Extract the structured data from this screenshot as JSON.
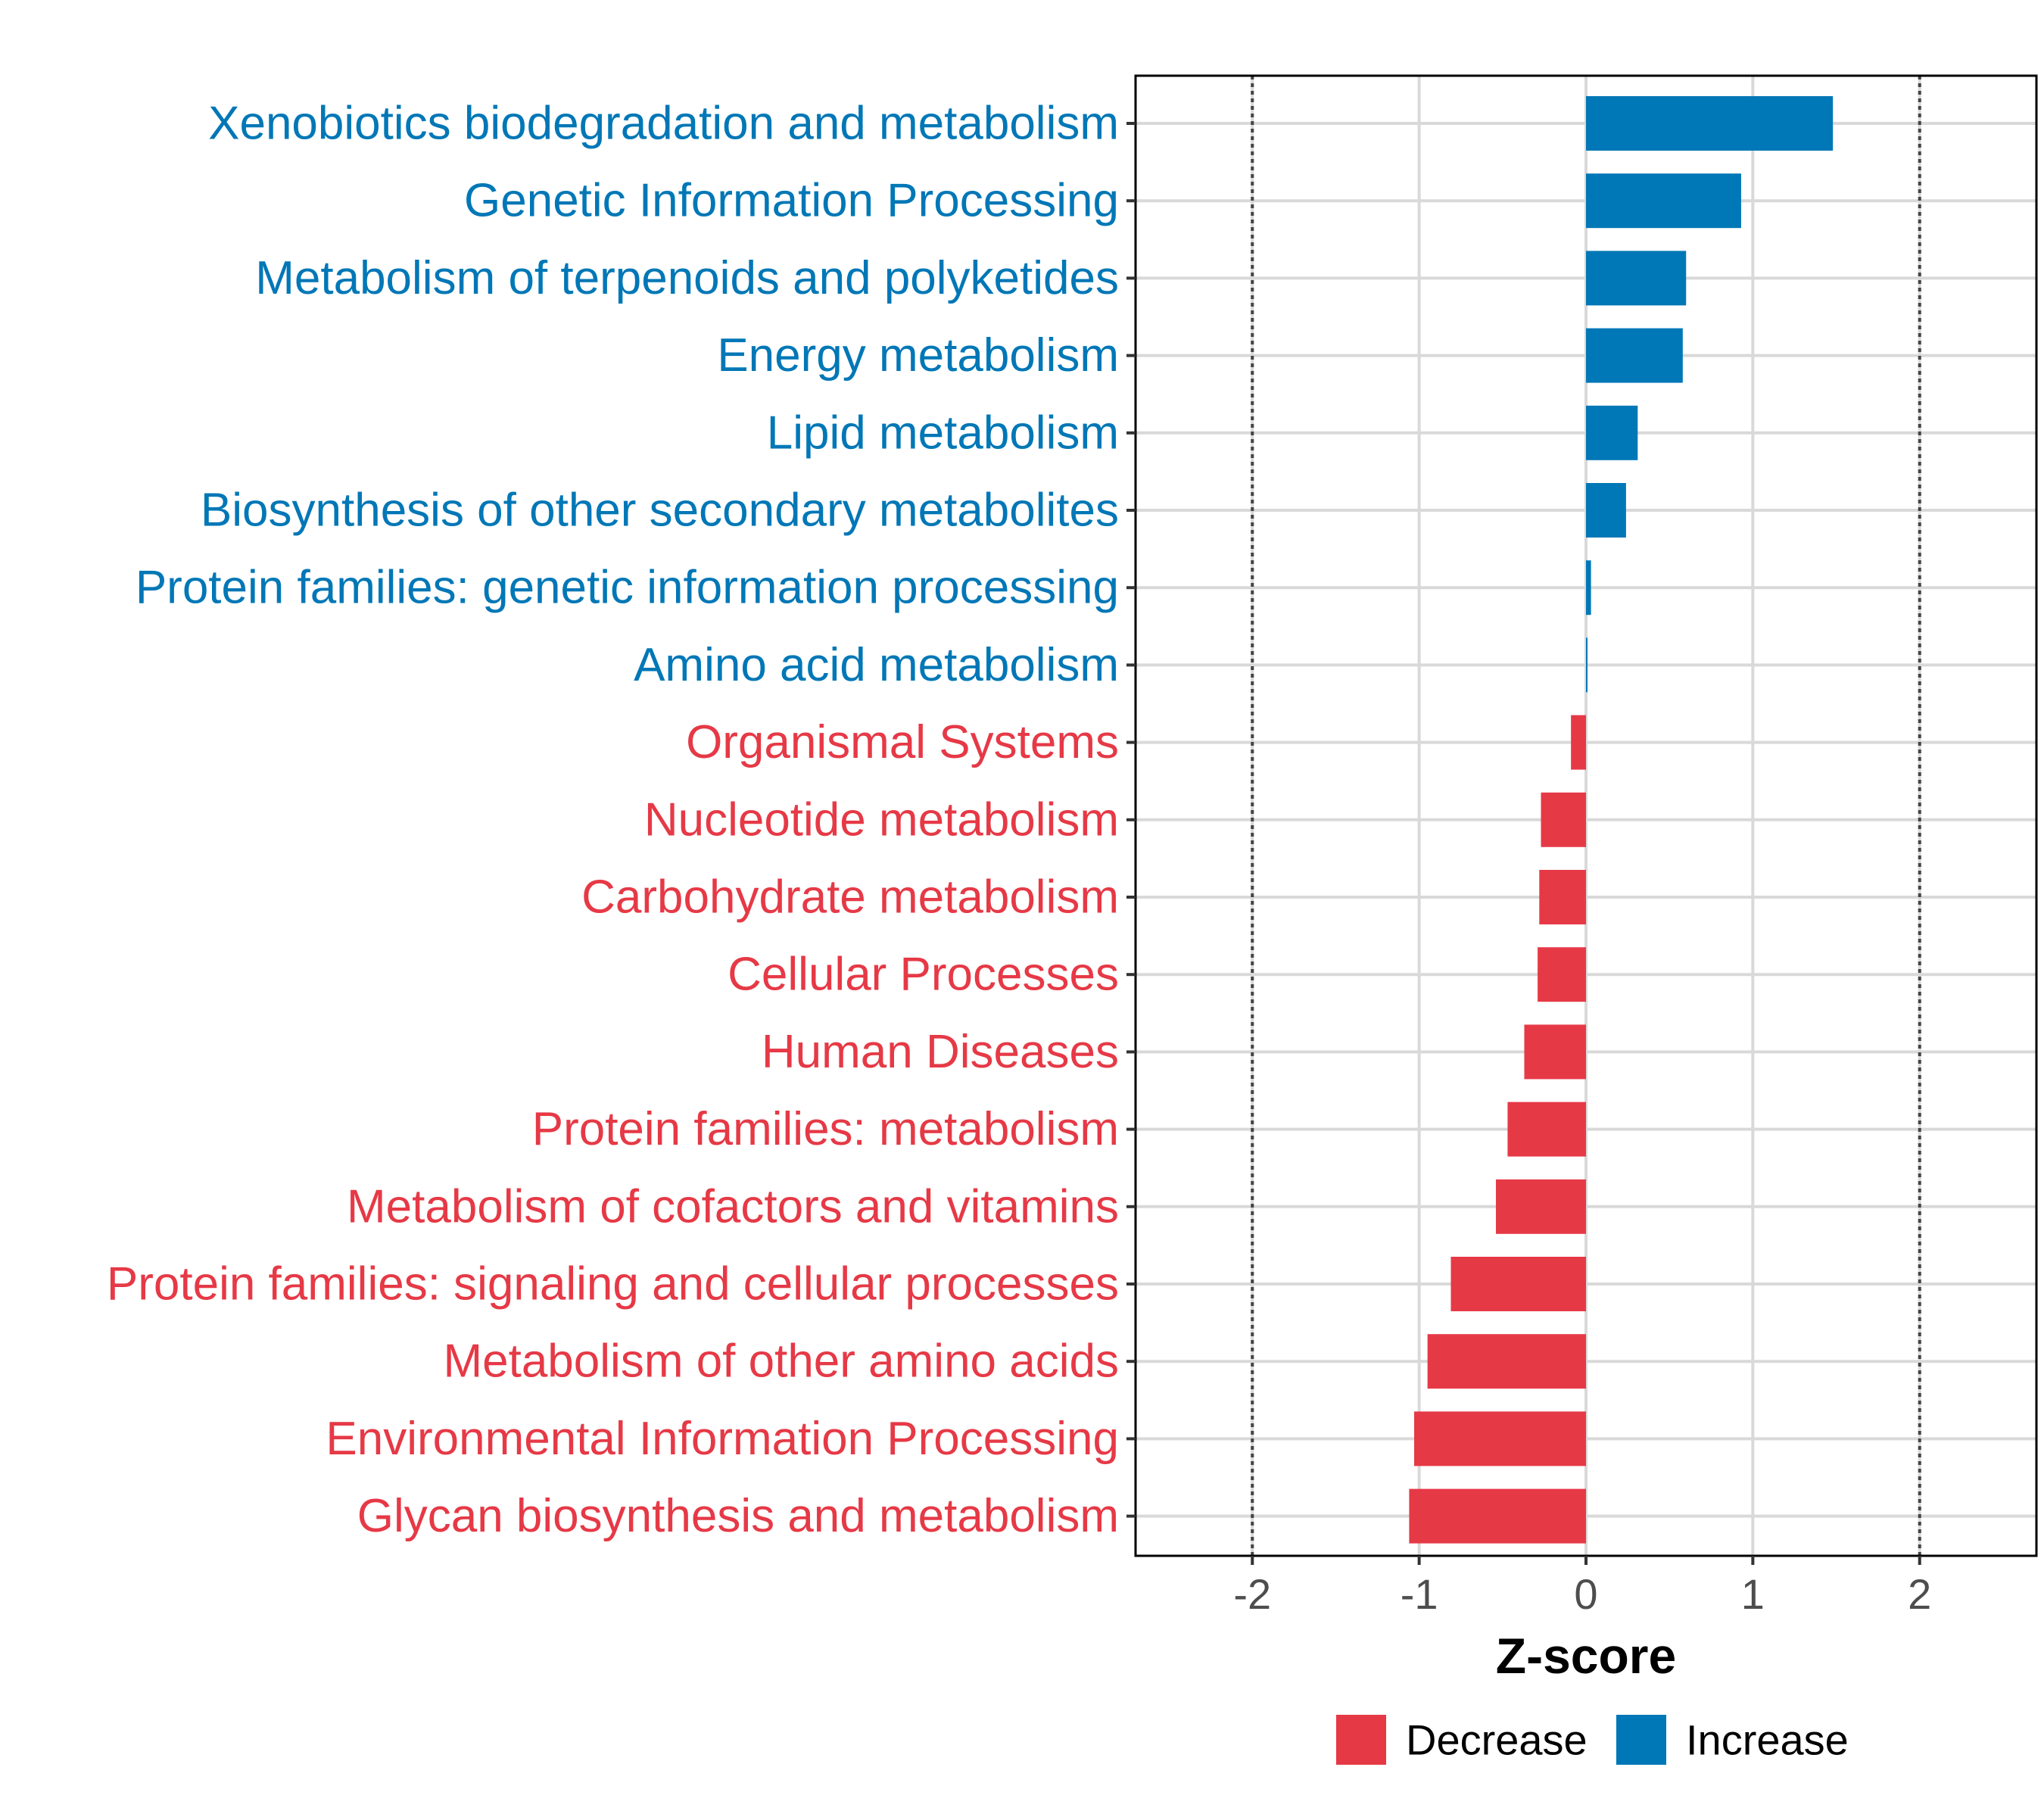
{
  "chart_data": {
    "type": "bar",
    "orientation": "horizontal",
    "title": "",
    "xlabel": "Z-score",
    "ylabel": "",
    "xlim": [
      -2.7,
      2.7
    ],
    "xticks": [
      -2,
      -1,
      0,
      1,
      2
    ],
    "xtick_labels": [
      "-2",
      "-1",
      "0",
      "1",
      "2"
    ],
    "reference_lines": [
      -2,
      2
    ],
    "grid": true,
    "categories": [
      "Xenobiotics biodegradation and metabolism",
      "Genetic Information Processing",
      "Metabolism of terpenoids and polyketides",
      "Energy metabolism",
      "Lipid metabolism",
      "Biosynthesis of other secondary metabolites",
      "Protein families: genetic information processing",
      "Amino acid metabolism",
      "Organismal Systems",
      "Nucleotide metabolism",
      "Carbohydrate metabolism",
      "Cellular Processes",
      "Human Diseases",
      "Protein families: metabolism",
      "Metabolism of cofactors and vitamins",
      "Protein families: signaling and cellular processes",
      "Metabolism of other amino acids",
      "Environmental Information Processing",
      "Glycan biosynthesis and metabolism"
    ],
    "values": [
      1.48,
      0.93,
      0.6,
      0.58,
      0.31,
      0.24,
      0.03,
      0.005,
      -0.09,
      -0.27,
      -0.28,
      -0.29,
      -0.37,
      -0.47,
      -0.54,
      -0.81,
      -0.95,
      -1.03,
      -1.06
    ],
    "groups": [
      "Increase",
      "Increase",
      "Increase",
      "Increase",
      "Increase",
      "Increase",
      "Increase",
      "Increase",
      "Decrease",
      "Decrease",
      "Decrease",
      "Decrease",
      "Decrease",
      "Decrease",
      "Decrease",
      "Decrease",
      "Decrease",
      "Decrease",
      "Decrease"
    ],
    "legend": {
      "position": "bottom",
      "entries": [
        {
          "label": "Decrease",
          "color": "#E63946"
        },
        {
          "label": "Increase",
          "color": "#0077B6"
        }
      ]
    },
    "colors": {
      "Decrease": "#E63946",
      "Increase": "#0077B6"
    }
  }
}
